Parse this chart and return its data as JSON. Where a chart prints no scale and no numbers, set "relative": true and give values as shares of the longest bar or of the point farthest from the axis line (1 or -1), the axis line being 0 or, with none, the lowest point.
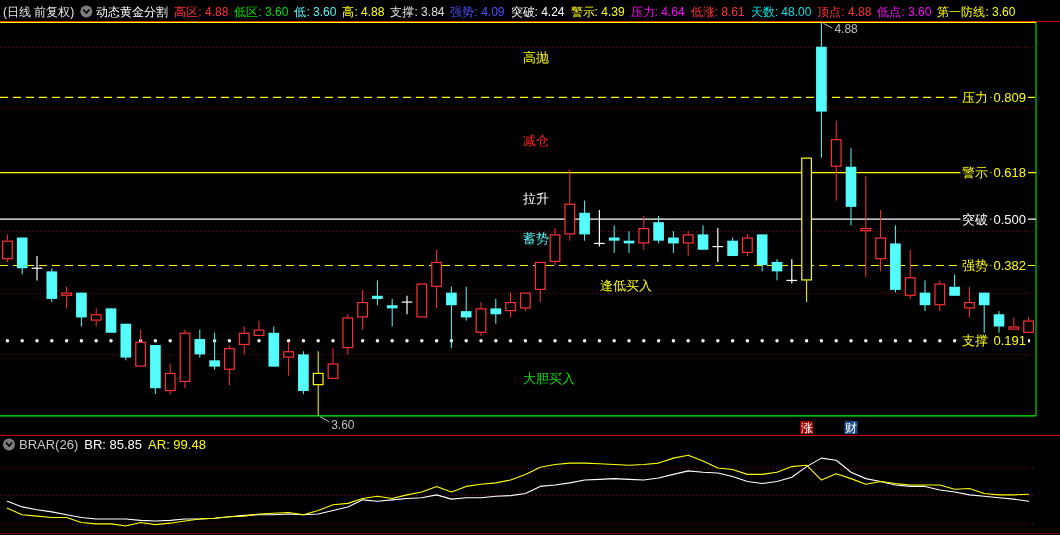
{
  "chart_data": [
    {
      "type": "candlestick",
      "title": "(日线 前复权)",
      "subtitle": "动态黄金分割",
      "annotations": [
        "高区: 4.88",
        "低区: 3.60",
        "低: 3.60",
        "高: 4.88",
        "支撑: 3.84",
        "强势: 4.09",
        "突破: 4.24",
        "警示: 4.39",
        "压力: 4.64",
        "低涨: 8.61",
        "天数: 48.00",
        "顶点: 4.88",
        "低点: 3.60",
        "第一防线: 3.60",
        "高抛",
        "减仓",
        "拉升",
        "蓄势",
        "逢低买入",
        "大胆买入",
        {
          "text": "4.88",
          "y": 1
        },
        {
          "text": "3.60",
          "y": 0
        },
        "涨",
        "财"
      ],
      "categories": [
        null,
        null,
        null,
        null,
        null,
        null,
        null,
        null,
        null,
        null,
        null,
        null,
        null,
        null,
        null,
        null,
        null,
        null,
        null,
        null,
        null,
        null,
        null,
        null,
        null,
        null,
        null,
        null,
        null,
        null,
        null,
        null,
        null,
        null,
        null,
        null,
        null,
        null,
        null,
        null,
        null,
        null,
        null,
        null,
        null,
        null,
        null,
        null,
        null,
        null,
        null,
        null,
        null,
        null,
        null,
        null,
        null,
        null,
        null,
        null,
        null,
        null,
        null,
        null,
        null,
        null,
        null,
        null,
        null,
        null
      ],
      "ohlc": [
        [
          0.398,
          0.461,
          0.391,
          0.445
        ],
        [
          0.453,
          0.453,
          0.359,
          0.375
        ],
        [
          0.375,
          0.406,
          0.344,
          0.375
        ],
        [
          0.367,
          0.375,
          0.289,
          0.297
        ],
        [
          0.305,
          0.328,
          0.273,
          0.313
        ],
        [
          0.313,
          0.313,
          0.227,
          0.25
        ],
        [
          0.242,
          0.273,
          0.227,
          0.258
        ],
        [
          0.273,
          0.273,
          0.211,
          0.211
        ],
        [
          0.234,
          0.234,
          0.141,
          0.148
        ],
        [
          0.125,
          0.219,
          0.125,
          0.188
        ],
        [
          0.18,
          0.18,
          0.055,
          0.07
        ],
        [
          0.063,
          0.133,
          0.055,
          0.109
        ],
        [
          0.086,
          0.219,
          0.07,
          0.211
        ],
        [
          0.195,
          0.219,
          0.148,
          0.156
        ],
        [
          0.141,
          0.211,
          0.117,
          0.125
        ],
        [
          0.117,
          0.18,
          0.078,
          0.172
        ],
        [
          0.18,
          0.227,
          0.156,
          0.211
        ],
        [
          0.203,
          0.242,
          0.203,
          0.219
        ],
        [
          0.211,
          0.227,
          0.125,
          0.125
        ],
        [
          0.148,
          0.188,
          0.102,
          0.164
        ],
        [
          0.156,
          0.164,
          0.055,
          0.063
        ],
        [
          0.078,
          0.164,
          0,
          0.109
        ],
        [
          0.094,
          0.172,
          0.094,
          0.133
        ],
        [
          0.172,
          0.258,
          0.156,
          0.25
        ],
        [
          0.25,
          0.32,
          0.219,
          0.289
        ],
        [
          0.305,
          0.344,
          0.281,
          0.297
        ],
        [
          0.281,
          0.297,
          0.227,
          0.273
        ],
        [
          0.289,
          0.305,
          0.258,
          0.289
        ],
        [
          0.25,
          0.336,
          0.25,
          0.336
        ],
        [
          0.328,
          0.422,
          0.273,
          0.391
        ],
        [
          0.313,
          0.328,
          0.172,
          0.281
        ],
        [
          0.266,
          0.328,
          0.242,
          0.25
        ],
        [
          0.211,
          0.289,
          0.203,
          0.273
        ],
        [
          0.273,
          0.297,
          0.234,
          0.258
        ],
        [
          0.266,
          0.313,
          0.25,
          0.289
        ],
        [
          0.273,
          0.313,
          0.266,
          0.313
        ],
        [
          0.32,
          0.391,
          0.289,
          0.391
        ],
        [
          0.391,
          0.477,
          0.383,
          0.461
        ],
        [
          0.461,
          0.625,
          0.445,
          0.539
        ],
        [
          0.516,
          0.547,
          0.445,
          0.461
        ],
        [
          0.438,
          0.523,
          0.43,
          0.438
        ],
        [
          0.453,
          0.484,
          0.414,
          0.445
        ],
        [
          0.445,
          0.469,
          0.414,
          0.438
        ],
        [
          0.438,
          0.508,
          0.422,
          0.477
        ],
        [
          0.492,
          0.508,
          0.438,
          0.445
        ],
        [
          0.453,
          0.469,
          0.414,
          0.438
        ],
        [
          0.438,
          0.469,
          0.406,
          0.461
        ],
        [
          0.461,
          0.484,
          0.422,
          0.422
        ],
        [
          0.43,
          0.477,
          0.391,
          0.43
        ],
        [
          0.445,
          0.453,
          0.406,
          0.406
        ],
        [
          0.414,
          0.461,
          0.406,
          0.453
        ],
        [
          0.461,
          0.461,
          0.367,
          0.383
        ],
        [
          0.391,
          0.398,
          0.344,
          0.367
        ],
        [
          0.344,
          0.398,
          0.336,
          0.344
        ],
        [
          0.344,
          0.656,
          0.289,
          0.656
        ],
        [
          0.938,
          1,
          0.656,
          0.773
        ],
        [
          0.633,
          0.75,
          0.547,
          0.703
        ],
        [
          0.633,
          0.68,
          0.484,
          0.531
        ],
        [
          0.469,
          0.609,
          0.352,
          0.477
        ],
        [
          0.398,
          0.523,
          0.367,
          0.453
        ],
        [
          0.438,
          0.484,
          0.313,
          0.32
        ],
        [
          0.305,
          0.422,
          0.297,
          0.352
        ],
        [
          0.313,
          0.344,
          0.266,
          0.281
        ],
        [
          0.281,
          0.344,
          0.266,
          0.336
        ],
        [
          0.328,
          0.359,
          0.305,
          0.305
        ],
        [
          0.273,
          0.328,
          0.25,
          0.289
        ],
        [
          0.313,
          0.313,
          0.211,
          0.281
        ],
        [
          0.258,
          0.266,
          0.211,
          0.227
        ],
        [
          0.219,
          0.25,
          0.219,
          0.227
        ],
        [
          0.211,
          0.25,
          0.211,
          0.242
        ]
      ],
      "colors": [
        "#ff3232",
        "#54fcfc",
        "#ffffff",
        "#54fcfc",
        "#ff3232",
        "#54fcfc",
        "#ff3232",
        "#54fcfc",
        "#54fcfc",
        "#ff3232",
        "#54fcfc",
        "#ff3232",
        "#ff3232",
        "#54fcfc",
        "#54fcfc",
        "#ff3232",
        "#ff3232",
        "#ff3232",
        "#54fcfc",
        "#ff3232",
        "#54fcfc",
        "#ffff00",
        "#ff3232",
        "#ff3232",
        "#ff3232",
        "#54fcfc",
        "#54fcfc",
        "#ffffff",
        "#ff3232",
        "#ff3232",
        "#54fcfc",
        "#54fcfc",
        "#ff3232",
        "#54fcfc",
        "#ff3232",
        "#ff3232",
        "#ff3232",
        "#ff3232",
        "#ff3232",
        "#54fcfc",
        "#ffffff",
        "#54fcfc",
        "#54fcfc",
        "#ff3232",
        "#54fcfc",
        "#54fcfc",
        "#ff3232",
        "#54fcfc",
        "#ffffff",
        "#54fcfc",
        "#ff3232",
        "#54fcfc",
        "#54fcfc",
        "#ffffff",
        "#ffff00",
        "#54fcfc",
        "#ff3232",
        "#54fcfc",
        "#ff3232",
        "#ff3232",
        "#54fcfc",
        "#ff3232",
        "#54fcfc",
        "#ff3232",
        "#54fcfc",
        "#ff3232",
        "#54fcfc",
        "#54fcfc",
        "#ff3232",
        "#ff3232"
      ],
      "ylim": [
        0,
        1
      ],
      "yticks": [
        0.191,
        0.382,
        {
          "value": 0.5,
          "label": "0.500"
        },
        0.618,
        0.809
      ],
      "tick_labels": "y",
      "ref_lines": [
        {
          "axis": "y",
          "value": 0.156,
          "color": "#8a0000",
          "line_style": "dotted"
        },
        {
          "axis": "y",
          "value": 0.313,
          "color": "#8a0000",
          "line_style": "dotted"
        },
        {
          "axis": "y",
          "value": 0.469,
          "color": "#8a0000",
          "line_style": "dotted"
        },
        {
          "axis": "y",
          "value": 0.625,
          "color": "#8a0000",
          "line_style": "dotted"
        },
        {
          "axis": "y",
          "value": 0.781,
          "color": "#8a0000",
          "line_style": "dotted"
        },
        {
          "axis": "y",
          "value": 0.938,
          "color": "#8a0000",
          "line_style": "dotted"
        },
        {
          "axis": "y",
          "value": 1,
          "color": "#ffff00",
          "line_style": "solid"
        },
        {
          "axis": "y",
          "value": 0.809,
          "label": "压力",
          "color": "#ffff00",
          "line_style": "dashed"
        },
        {
          "axis": "y",
          "value": 0.618,
          "label": "警示",
          "color": "#ffff00",
          "line_style": "solid"
        },
        {
          "axis": "y",
          "value": 0.5,
          "label": "突破",
          "color": "#ffffff",
          "line_style": "solid"
        },
        {
          "axis": "y",
          "value": 0.382,
          "label": "强势",
          "color": "#ffff00",
          "line_style": "dashed"
        },
        {
          "axis": "y",
          "value": 0.191,
          "label": "支撑",
          "color": "#ffffff",
          "line_style": "dotted"
        },
        {
          "axis": "y",
          "value": 0,
          "color": "#00ff00",
          "line_style": "solid"
        }
      ]
    },
    {
      "type": "line",
      "title": "BRAR(26)",
      "relative": true,
      "categories": [
        null,
        null,
        null,
        null,
        null,
        null,
        null,
        null,
        null,
        null,
        null,
        null,
        null,
        null,
        null,
        null,
        null,
        null,
        null,
        null,
        null,
        null,
        null,
        null,
        null,
        null,
        null,
        null,
        null,
        null,
        null,
        null,
        null,
        null,
        null,
        null,
        null,
        null,
        null,
        null,
        null,
        null,
        null,
        null,
        null,
        null,
        null,
        null,
        null,
        null,
        null,
        null,
        null,
        null,
        null,
        null,
        null,
        null,
        null,
        null,
        null,
        null,
        null,
        null,
        null,
        null,
        null,
        null,
        null,
        null
      ],
      "series": [
        {
          "name": "BR: 85.85",
          "color": "#ffffff",
          "values": [
            0.35,
            0.27,
            0.23,
            0.2,
            0.16,
            0.12,
            0.1,
            0.1,
            0.1,
            0.08,
            0.07,
            0.08,
            0.1,
            0.1,
            0.11,
            0.13,
            0.15,
            0.16,
            0.16,
            0.17,
            0.16,
            0.17,
            0.22,
            0.27,
            0.37,
            0.35,
            0.37,
            0.39,
            0.4,
            0.44,
            0.38,
            0.4,
            0.4,
            0.42,
            0.43,
            0.46,
            0.56,
            0.58,
            0.61,
            0.65,
            0.66,
            0.67,
            0.66,
            0.65,
            0.68,
            0.73,
            0.78,
            0.76,
            0.75,
            0.7,
            0.63,
            0.6,
            0.63,
            0.69,
            0.84,
            0.96,
            0.93,
            0.76,
            0.67,
            0.63,
            0.58,
            0.56,
            0.56,
            0.51,
            0.48,
            0.44,
            0.42,
            0.4,
            0.38,
            0.35
          ]
        },
        {
          "name": "AR: 99.48",
          "color": "#ffff00",
          "values": [
            0.25,
            0.16,
            0.14,
            0.12,
            0.12,
            0.05,
            0.03,
            0.03,
            0,
            0.05,
            0.02,
            0.04,
            0.07,
            0.1,
            0.11,
            0.13,
            0.14,
            0.17,
            0.18,
            0.19,
            0.16,
            0.22,
            0.3,
            0.32,
            0.39,
            0.42,
            0.39,
            0.44,
            0.48,
            0.56,
            0.48,
            0.56,
            0.59,
            0.61,
            0.65,
            0.73,
            0.83,
            0.87,
            0.89,
            0.89,
            0.88,
            0.87,
            0.86,
            0.87,
            0.89,
            0.96,
            1,
            0.92,
            0.82,
            0.8,
            0.73,
            0.73,
            0.76,
            0.84,
            0.86,
            0.65,
            0.74,
            0.67,
            0.59,
            0.63,
            0.6,
            0.58,
            0.58,
            0.58,
            0.52,
            0.53,
            0.46,
            0.44,
            0.44,
            0.45
          ]
        }
      ],
      "ref_lines": [
        {
          "axis": "y",
          "value": 0.82,
          "color": "#8a0000",
          "line_style": "dotted"
        },
        {
          "axis": "y",
          "value": 0.44,
          "color": "#8a0000",
          "line_style": "dotted"
        },
        {
          "axis": "y",
          "value": 0.03,
          "color": "#8a0000",
          "line_style": "dotted"
        }
      ],
      "legend": "top left"
    }
  ]
}
